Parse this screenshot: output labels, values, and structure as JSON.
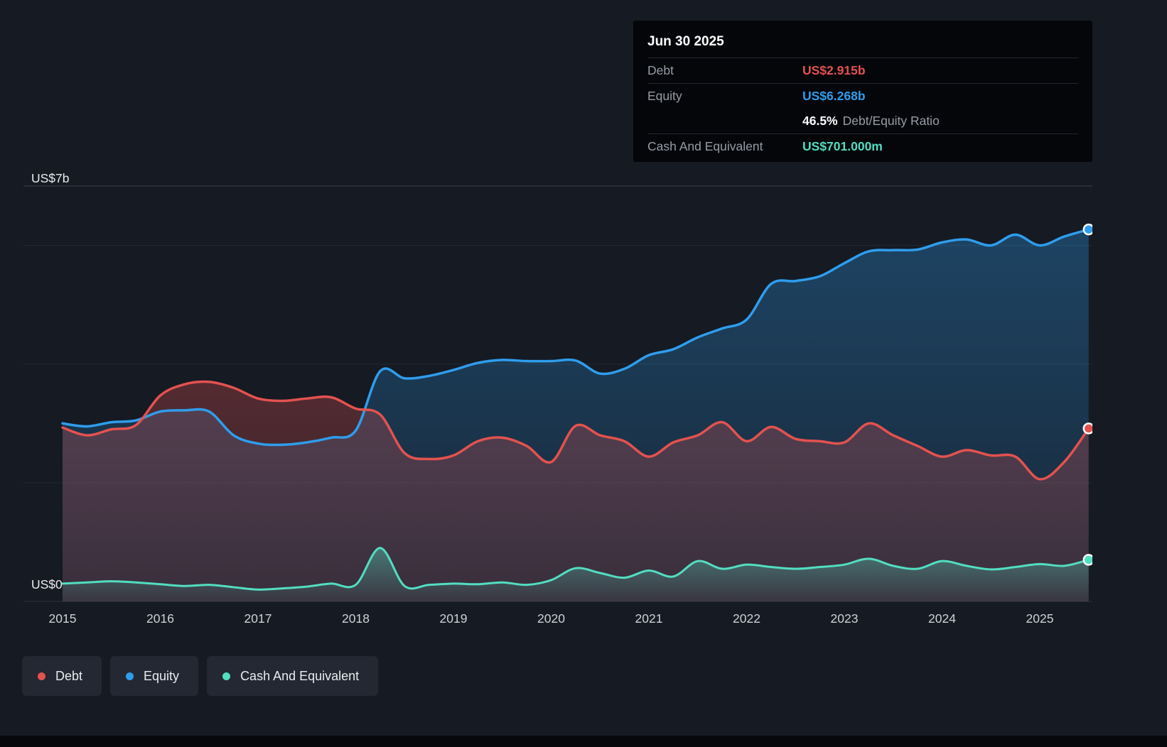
{
  "colors": {
    "background": "#151a23",
    "debt": "#e4524f",
    "equity": "#2f9ded",
    "cash": "#52dec2"
  },
  "tooltip": {
    "date": "Jun 30 2025",
    "debt_label": "Debt",
    "debt_value": "US$2.915b",
    "equity_label": "Equity",
    "equity_value": "US$6.268b",
    "ratio_value": "46.5%",
    "ratio_label": "Debt/Equity Ratio",
    "cash_label": "Cash And Equivalent",
    "cash_value": "US$701.000m"
  },
  "axis": {
    "y_top": "US$7b",
    "y_zero": "US$0",
    "years": [
      "2015",
      "2016",
      "2017",
      "2018",
      "2019",
      "2020",
      "2021",
      "2022",
      "2023",
      "2024",
      "2025"
    ]
  },
  "legend": {
    "debt": "Debt",
    "equity": "Equity",
    "cash": "Cash And Equivalent"
  },
  "chart_data": {
    "type": "area",
    "y_unit": "US$ billions",
    "ylim": [
      0,
      7
    ],
    "gridlines": [
      7,
      6,
      4,
      2
    ],
    "x_ticks": [
      2015,
      2016,
      2017,
      2018,
      2019,
      2020,
      2021,
      2022,
      2023,
      2024,
      2025
    ],
    "legend_position": "bottom-left",
    "x": [
      2015,
      2015.25,
      2015.5,
      2015.75,
      2016,
      2016.25,
      2016.5,
      2016.75,
      2017,
      2017.25,
      2017.5,
      2017.75,
      2018,
      2018.25,
      2018.5,
      2018.75,
      2019,
      2019.25,
      2019.5,
      2019.75,
      2020,
      2020.25,
      2020.5,
      2020.75,
      2021,
      2021.25,
      2021.5,
      2021.75,
      2022,
      2022.25,
      2022.5,
      2022.75,
      2023,
      2023.25,
      2023.5,
      2023.75,
      2024,
      2024.25,
      2024.5,
      2024.75,
      2025,
      2025.25,
      2025.5
    ],
    "series": [
      {
        "name": "Debt",
        "color": "#e4524f",
        "values": [
          2.93,
          2.8,
          2.9,
          2.97,
          3.47,
          3.66,
          3.7,
          3.6,
          3.42,
          3.38,
          3.42,
          3.44,
          3.25,
          3.15,
          2.5,
          2.4,
          2.46,
          2.7,
          2.76,
          2.62,
          2.35,
          2.96,
          2.8,
          2.7,
          2.44,
          2.68,
          2.8,
          3.02,
          2.7,
          2.94,
          2.74,
          2.7,
          2.68,
          3.0,
          2.8,
          2.62,
          2.44,
          2.55,
          2.46,
          2.44,
          2.06,
          2.35,
          2.915
        ]
      },
      {
        "name": "Equity",
        "color": "#2f9ded",
        "values": [
          3.0,
          2.95,
          3.02,
          3.05,
          3.2,
          3.22,
          3.2,
          2.8,
          2.66,
          2.64,
          2.68,
          2.76,
          2.88,
          3.88,
          3.76,
          3.8,
          3.9,
          4.02,
          4.07,
          4.05,
          4.05,
          4.06,
          3.84,
          3.92,
          4.15,
          4.25,
          4.45,
          4.6,
          4.75,
          5.35,
          5.4,
          5.48,
          5.7,
          5.9,
          5.92,
          5.93,
          6.05,
          6.1,
          6.0,
          6.18,
          6.0,
          6.15,
          6.268
        ]
      },
      {
        "name": "Cash And Equivalent",
        "color": "#52dec2",
        "values": [
          0.3,
          0.32,
          0.34,
          0.32,
          0.29,
          0.26,
          0.28,
          0.24,
          0.2,
          0.22,
          0.25,
          0.3,
          0.28,
          0.9,
          0.26,
          0.28,
          0.3,
          0.29,
          0.32,
          0.28,
          0.36,
          0.56,
          0.48,
          0.4,
          0.52,
          0.42,
          0.68,
          0.55,
          0.62,
          0.58,
          0.55,
          0.58,
          0.62,
          0.72,
          0.6,
          0.55,
          0.68,
          0.6,
          0.54,
          0.58,
          0.63,
          0.6,
          0.701
        ]
      }
    ]
  }
}
